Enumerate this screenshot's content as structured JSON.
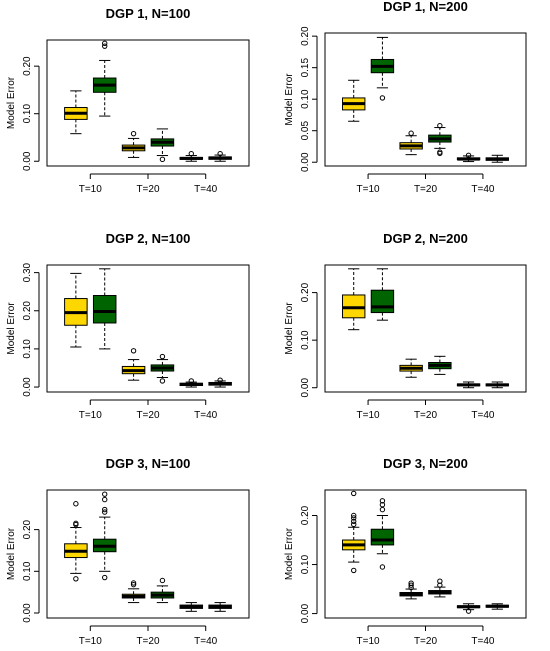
{
  "colors": {
    "series1": "#FFD700",
    "series2": "#006400",
    "median": "#000000",
    "frame": "#000000"
  },
  "chart_data": [
    {
      "type": "boxplot",
      "title": "DGP 1, N=100",
      "ylabel": "Model Error",
      "ylim": [
        -0.01,
        0.255
      ],
      "yticks": [
        0.0,
        0.1,
        0.2
      ],
      "ytick_labels": [
        "0.00",
        "0.10",
        "0.20"
      ],
      "categories": [
        "T=10",
        "T=20",
        "T=40"
      ],
      "boxes": [
        {
          "min": 0.058,
          "q1": 0.088,
          "median": 0.101,
          "q3": 0.113,
          "max": 0.148,
          "outliers": []
        },
        {
          "min": 0.095,
          "q1": 0.145,
          "median": 0.16,
          "q3": 0.175,
          "max": 0.212,
          "outliers": [
            0.242,
            0.248
          ]
        },
        {
          "min": 0.008,
          "q1": 0.022,
          "median": 0.028,
          "q3": 0.034,
          "max": 0.048,
          "outliers": [
            0.058
          ]
        },
        {
          "min": 0.012,
          "q1": 0.032,
          "median": 0.04,
          "q3": 0.047,
          "max": 0.068,
          "outliers": [
            0.004
          ]
        },
        {
          "min": 0.0,
          "q1": 0.004,
          "median": 0.006,
          "q3": 0.008,
          "max": 0.012,
          "outliers": [
            0.016
          ]
        },
        {
          "min": 0.0,
          "q1": 0.004,
          "median": 0.007,
          "q3": 0.009,
          "max": 0.013,
          "outliers": [
            0.016
          ]
        }
      ]
    },
    {
      "type": "boxplot",
      "title": "DGP 1, N=200",
      "ylabel": "Model Error",
      "ylim": [
        -0.006,
        0.205
      ],
      "yticks": [
        0.0,
        0.05,
        0.1,
        0.15,
        0.2
      ],
      "ytick_labels": [
        "0.00",
        "0.05",
        "0.10",
        "0.15",
        "0.20"
      ],
      "categories": [
        "T=10",
        "T=20",
        "T=40"
      ],
      "boxes": [
        {
          "min": 0.065,
          "q1": 0.083,
          "median": 0.093,
          "q3": 0.102,
          "max": 0.13,
          "outliers": []
        },
        {
          "min": 0.118,
          "q1": 0.142,
          "median": 0.152,
          "q3": 0.163,
          "max": 0.198,
          "outliers": [
            0.102
          ]
        },
        {
          "min": 0.012,
          "q1": 0.021,
          "median": 0.026,
          "q3": 0.031,
          "max": 0.042,
          "outliers": [
            0.046
          ]
        },
        {
          "min": 0.022,
          "q1": 0.032,
          "median": 0.037,
          "q3": 0.043,
          "max": 0.055,
          "outliers": [
            0.016,
            0.014,
            0.058
          ]
        },
        {
          "min": 0.001,
          "q1": 0.004,
          "median": 0.005,
          "q3": 0.007,
          "max": 0.01,
          "outliers": [
            0.011
          ]
        },
        {
          "min": 0.0,
          "q1": 0.003,
          "median": 0.005,
          "q3": 0.007,
          "max": 0.011,
          "outliers": []
        }
      ]
    },
    {
      "type": "boxplot",
      "title": "DGP 2, N=100",
      "ylabel": "Model Error",
      "ylim": [
        -0.013,
        0.32
      ],
      "yticks": [
        0.0,
        0.1,
        0.2,
        0.3
      ],
      "ytick_labels": [
        "0.00",
        "0.10",
        "0.20",
        "0.30"
      ],
      "categories": [
        "T=10",
        "T=20",
        "T=40"
      ],
      "boxes": [
        {
          "min": 0.105,
          "q1": 0.162,
          "median": 0.195,
          "q3": 0.232,
          "max": 0.298,
          "outliers": []
        },
        {
          "min": 0.1,
          "q1": 0.168,
          "median": 0.198,
          "q3": 0.24,
          "max": 0.31,
          "outliers": []
        },
        {
          "min": 0.018,
          "q1": 0.035,
          "median": 0.043,
          "q3": 0.054,
          "max": 0.072,
          "outliers": [
            0.095
          ]
        },
        {
          "min": 0.025,
          "q1": 0.042,
          "median": 0.05,
          "q3": 0.058,
          "max": 0.072,
          "outliers": [
            0.016,
            0.08
          ]
        },
        {
          "min": 0.0,
          "q1": 0.004,
          "median": 0.007,
          "q3": 0.01,
          "max": 0.013,
          "outliers": [
            0.016
          ]
        },
        {
          "min": 0.0,
          "q1": 0.005,
          "median": 0.009,
          "q3": 0.012,
          "max": 0.016,
          "outliers": [
            0.018
          ]
        }
      ]
    },
    {
      "type": "boxplot",
      "title": "DGP 2, N=200",
      "ylabel": "Model Error",
      "ylim": [
        -0.009,
        0.258
      ],
      "yticks": [
        0.0,
        0.1,
        0.2
      ],
      "ytick_labels": [
        "0.00",
        "0.10",
        "0.20"
      ],
      "categories": [
        "T=10",
        "T=20",
        "T=40"
      ],
      "boxes": [
        {
          "min": 0.122,
          "q1": 0.147,
          "median": 0.168,
          "q3": 0.195,
          "max": 0.25,
          "outliers": []
        },
        {
          "min": 0.142,
          "q1": 0.158,
          "median": 0.17,
          "q3": 0.205,
          "max": 0.25,
          "outliers": []
        },
        {
          "min": 0.022,
          "q1": 0.035,
          "median": 0.041,
          "q3": 0.047,
          "max": 0.06,
          "outliers": []
        },
        {
          "min": 0.028,
          "q1": 0.04,
          "median": 0.047,
          "q3": 0.053,
          "max": 0.066,
          "outliers": []
        },
        {
          "min": 0.0,
          "q1": 0.004,
          "median": 0.006,
          "q3": 0.008,
          "max": 0.012,
          "outliers": []
        },
        {
          "min": 0.0,
          "q1": 0.004,
          "median": 0.006,
          "q3": 0.008,
          "max": 0.012,
          "outliers": []
        }
      ]
    },
    {
      "type": "boxplot",
      "title": "DGP 3, N=100",
      "ylabel": "Model Error",
      "ylim": [
        -0.012,
        0.295
      ],
      "yticks": [
        0.0,
        0.1,
        0.2
      ],
      "ytick_labels": [
        "0.00",
        "0.10",
        "0.20"
      ],
      "categories": [
        "T=10",
        "T=20",
        "T=40"
      ],
      "boxes": [
        {
          "min": 0.095,
          "q1": 0.133,
          "median": 0.148,
          "q3": 0.166,
          "max": 0.205,
          "outliers": [
            0.082,
            0.212,
            0.215,
            0.262
          ]
        },
        {
          "min": 0.1,
          "q1": 0.147,
          "median": 0.16,
          "q3": 0.177,
          "max": 0.23,
          "outliers": [
            0.085,
            0.242,
            0.248,
            0.272,
            0.285
          ]
        },
        {
          "min": 0.025,
          "q1": 0.036,
          "median": 0.04,
          "q3": 0.045,
          "max": 0.058,
          "outliers": [
            0.068,
            0.072
          ]
        },
        {
          "min": 0.025,
          "q1": 0.036,
          "median": 0.043,
          "q3": 0.05,
          "max": 0.065,
          "outliers": [
            0.078
          ]
        },
        {
          "min": 0.004,
          "q1": 0.011,
          "median": 0.015,
          "q3": 0.019,
          "max": 0.025,
          "outliers": []
        },
        {
          "min": 0.004,
          "q1": 0.011,
          "median": 0.015,
          "q3": 0.019,
          "max": 0.025,
          "outliers": []
        }
      ]
    },
    {
      "type": "boxplot",
      "title": "DGP 3, N=200",
      "ylabel": "Model Error",
      "ylim": [
        -0.009,
        0.252
      ],
      "yticks": [
        0.0,
        0.1,
        0.2
      ],
      "ytick_labels": [
        "0.00",
        "0.10",
        "0.20"
      ],
      "categories": [
        "T=10",
        "T=20",
        "T=40"
      ],
      "boxes": [
        {
          "min": 0.105,
          "q1": 0.13,
          "median": 0.14,
          "q3": 0.15,
          "max": 0.176,
          "outliers": [
            0.088,
            0.182,
            0.188,
            0.195,
            0.2,
            0.245
          ]
        },
        {
          "min": 0.122,
          "q1": 0.14,
          "median": 0.15,
          "q3": 0.172,
          "max": 0.2,
          "outliers": [
            0.095,
            0.212,
            0.222,
            0.23
          ]
        },
        {
          "min": 0.03,
          "q1": 0.036,
          "median": 0.04,
          "q3": 0.043,
          "max": 0.05,
          "outliers": [
            0.053,
            0.058,
            0.062
          ]
        },
        {
          "min": 0.034,
          "q1": 0.04,
          "median": 0.043,
          "q3": 0.047,
          "max": 0.054,
          "outliers": [
            0.058,
            0.066
          ]
        },
        {
          "min": 0.008,
          "q1": 0.012,
          "median": 0.014,
          "q3": 0.016,
          "max": 0.02,
          "outliers": [
            0.005
          ]
        },
        {
          "min": 0.009,
          "q1": 0.013,
          "median": 0.015,
          "q3": 0.017,
          "max": 0.02,
          "outliers": []
        }
      ]
    }
  ]
}
